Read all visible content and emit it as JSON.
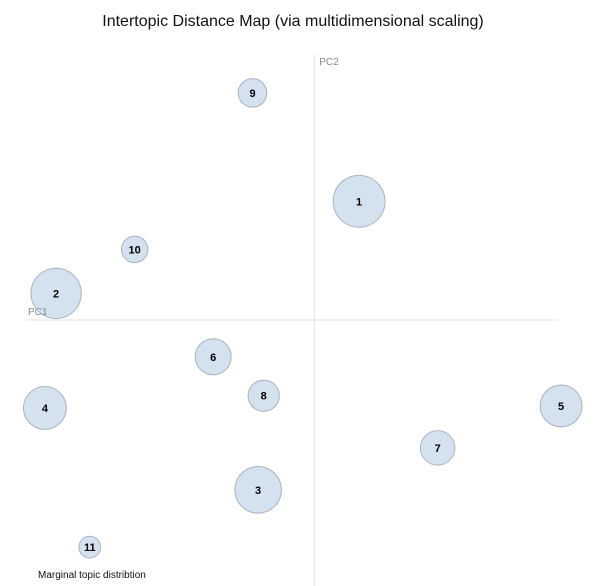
{
  "chart_data": {
    "type": "scatter",
    "title": "Intertopic Distance Map (via multidimensional scaling)",
    "xlabel": "PC1",
    "ylabel": "PC2",
    "xlim": [
      -0.28,
      0.26
    ],
    "ylim": [
      -0.26,
      0.26
    ],
    "grid": false,
    "legend": "Marginal topic distribtion",
    "topics": [
      {
        "label": "1",
        "x": 0.04,
        "y": 0.116,
        "size": 0.098
      },
      {
        "label": "2",
        "x": -0.23,
        "y": 0.026,
        "size": 0.095
      },
      {
        "label": "3",
        "x": -0.05,
        "y": -0.166,
        "size": 0.088
      },
      {
        "label": "4",
        "x": -0.24,
        "y": -0.086,
        "size": 0.081
      },
      {
        "label": "5",
        "x": 0.22,
        "y": -0.084,
        "size": 0.079
      },
      {
        "label": "6",
        "x": -0.09,
        "y": -0.036,
        "size": 0.068
      },
      {
        "label": "7",
        "x": 0.11,
        "y": -0.125,
        "size": 0.065
      },
      {
        "label": "8",
        "x": -0.045,
        "y": -0.074,
        "size": 0.059
      },
      {
        "label": "9",
        "x": -0.055,
        "y": 0.222,
        "size": 0.054
      },
      {
        "label": "10",
        "x": -0.16,
        "y": 0.069,
        "size": 0.05
      },
      {
        "label": "11",
        "x": -0.2,
        "y": -0.222,
        "size": 0.041
      }
    ]
  }
}
